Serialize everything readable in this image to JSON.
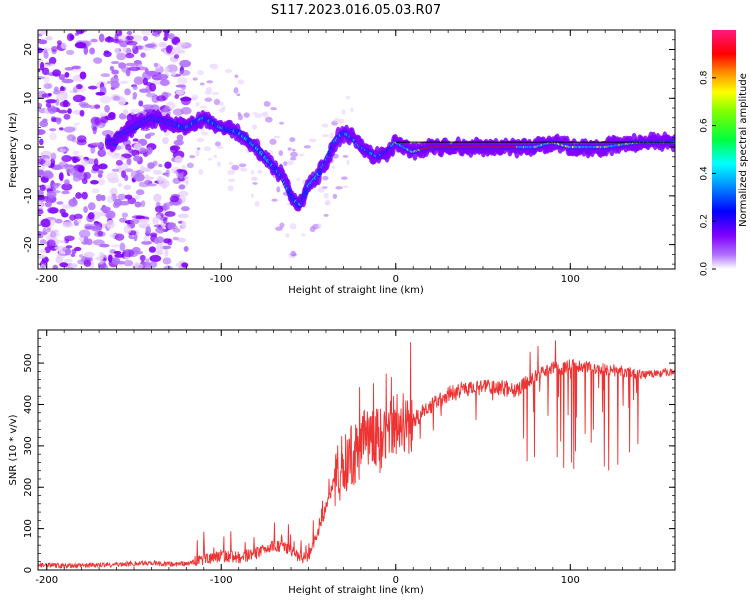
{
  "figure_title": "S117.2023.016.05.03.R07",
  "chart_data": [
    {
      "type": "heatmap",
      "title": "",
      "xlabel": "Height of straight line (km)",
      "ylabel": "Frequency (Hz)",
      "xlim": [
        -205,
        160
      ],
      "ylim": [
        -25,
        24
      ],
      "xticks": [
        -200,
        -100,
        0,
        100
      ],
      "yticks": [
        -20,
        -10,
        0,
        10,
        20
      ],
      "colorbar": {
        "label": "Normalized spectral amplitude",
        "range": [
          0.0,
          1.0
        ],
        "ticks": [
          0.0,
          0.2,
          0.4,
          0.6,
          0.8
        ],
        "colormap": [
          "#ffffff",
          "#8000ff",
          "#0000ff",
          "#00ffff",
          "#00ff00",
          "#ffff00",
          "#ff8000",
          "#ff0000",
          "#ff1493"
        ]
      },
      "ridge": {
        "x": [
          -160,
          -150,
          -140,
          -130,
          -120,
          -110,
          -100,
          -90,
          -80,
          -75,
          -70,
          -65,
          -60,
          -55,
          -50,
          -45,
          -40,
          -35,
          -30,
          -25,
          -20,
          -15,
          -10,
          -5,
          0,
          5,
          10,
          20,
          40,
          60,
          80,
          90,
          100,
          120,
          140,
          160
        ],
        "y": [
          2,
          4,
          6,
          5,
          4,
          6,
          4,
          3,
          0,
          -2,
          -4,
          -6,
          -10,
          -12,
          -8,
          -6,
          -3,
          1,
          3,
          2,
          0,
          -1,
          -2,
          -1,
          1,
          0,
          -1,
          0,
          0,
          0,
          0,
          1,
          0,
          0,
          1,
          1
        ]
      },
      "reference_line_y": 1,
      "grid": false
    },
    {
      "type": "line",
      "title": "",
      "xlabel": "Height of straight line (km)",
      "ylabel": "SNR (10 * v/v)",
      "xlim": [
        -205,
        160
      ],
      "ylim": [
        0,
        580
      ],
      "xticks": [
        -200,
        -100,
        0,
        100
      ],
      "yticks": [
        0,
        100,
        200,
        300,
        400,
        500
      ],
      "color": "#ee3333",
      "series": [
        {
          "x": [
            -205,
            -190,
            -170,
            -150,
            -140,
            -130,
            -120,
            -110,
            -100,
            -90,
            -80,
            -75,
            -70,
            -65,
            -60,
            -55,
            -50,
            -45,
            -40,
            -35,
            -30,
            -25,
            -20,
            -15,
            -10,
            -5,
            0,
            5,
            10,
            15,
            20,
            25,
            30,
            35,
            40,
            50,
            60,
            70,
            75,
            80,
            85,
            90,
            95,
            100,
            110,
            120,
            130,
            140,
            150,
            160
          ],
          "y": [
            12,
            10,
            12,
            15,
            18,
            14,
            15,
            25,
            35,
            30,
            40,
            50,
            60,
            55,
            45,
            25,
            35,
            80,
            150,
            220,
            260,
            280,
            300,
            320,
            310,
            330,
            350,
            355,
            360,
            380,
            395,
            410,
            425,
            430,
            440,
            440,
            440,
            435,
            450,
            470,
            480,
            490,
            485,
            495,
            490,
            485,
            480,
            470,
            475,
            480
          ]
        }
      ],
      "grid": false
    }
  ]
}
